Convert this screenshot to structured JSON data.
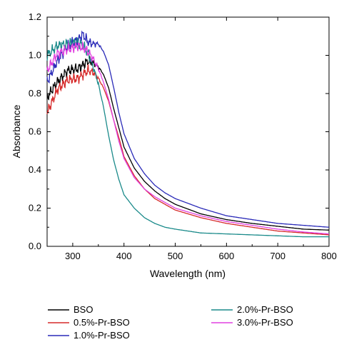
{
  "chart_data": {
    "type": "line",
    "xlabel": "Wavelength (nm)",
    "ylabel": "Absorbance",
    "xlim": [
      250,
      800
    ],
    "ylim": [
      0.0,
      1.2
    ],
    "x_ticks": [
      300,
      400,
      500,
      600,
      700,
      800
    ],
    "x_tick_labels": [
      "300",
      "400",
      "500",
      "600",
      "700",
      "800"
    ],
    "y_ticks": [
      0.0,
      0.2,
      0.4,
      0.6,
      0.8,
      1.0,
      1.2
    ],
    "y_tick_labels": [
      "0.0",
      "0.2",
      "0.4",
      "0.6",
      "0.8",
      "1.0",
      "1.2"
    ],
    "grid": false,
    "legend_position": "bottom, two columns below plot",
    "series": [
      {
        "name": "BSO",
        "color": "#000000",
        "x": [
          250,
          270,
          290,
          310,
          320,
          330,
          340,
          350,
          360,
          370,
          380,
          390,
          400,
          420,
          440,
          460,
          480,
          500,
          550,
          600,
          650,
          700,
          750,
          800
        ],
        "y": [
          0.78,
          0.86,
          0.92,
          0.93,
          0.95,
          0.97,
          0.96,
          0.94,
          0.9,
          0.83,
          0.72,
          0.62,
          0.52,
          0.41,
          0.34,
          0.29,
          0.25,
          0.22,
          0.17,
          0.14,
          0.12,
          0.105,
          0.09,
          0.085
        ]
      },
      {
        "name": "0.5%-Pr-BSO",
        "color": "#d62a2a",
        "x": [
          250,
          270,
          290,
          310,
          320,
          330,
          340,
          350,
          360,
          370,
          380,
          390,
          400,
          420,
          440,
          460,
          480,
          500,
          550,
          600,
          650,
          700,
          750,
          800
        ],
        "y": [
          0.7,
          0.82,
          0.87,
          0.88,
          0.9,
          0.92,
          0.91,
          0.88,
          0.83,
          0.76,
          0.66,
          0.57,
          0.47,
          0.37,
          0.3,
          0.25,
          0.22,
          0.19,
          0.15,
          0.12,
          0.1,
          0.08,
          0.07,
          0.06
        ]
      },
      {
        "name": "1.0%-Pr-BSO",
        "color": "#2a2ab8",
        "x": [
          250,
          270,
          290,
          310,
          320,
          330,
          340,
          350,
          360,
          370,
          380,
          390,
          400,
          420,
          440,
          460,
          480,
          500,
          550,
          600,
          650,
          700,
          750,
          800
        ],
        "y": [
          0.86,
          0.97,
          1.05,
          1.08,
          1.11,
          1.07,
          1.06,
          1.06,
          1.02,
          0.95,
          0.83,
          0.7,
          0.59,
          0.46,
          0.38,
          0.32,
          0.28,
          0.25,
          0.2,
          0.16,
          0.14,
          0.12,
          0.11,
          0.1
        ]
      },
      {
        "name": "2.0%-Pr-BSO",
        "color": "#1a8a8a",
        "x": [
          250,
          270,
          290,
          310,
          320,
          330,
          340,
          350,
          360,
          370,
          380,
          390,
          400,
          420,
          440,
          460,
          480,
          500,
          550,
          600,
          650,
          700,
          750,
          800
        ],
        "y": [
          1.0,
          1.05,
          1.06,
          1.07,
          1.05,
          1.01,
          0.94,
          0.85,
          0.73,
          0.58,
          0.45,
          0.35,
          0.27,
          0.2,
          0.15,
          0.12,
          0.1,
          0.09,
          0.07,
          0.065,
          0.06,
          0.055,
          0.05,
          0.05
        ]
      },
      {
        "name": "3.0%-Pr-BSO",
        "color": "#e040e0",
        "x": [
          250,
          270,
          290,
          310,
          320,
          330,
          340,
          350,
          360,
          370,
          380,
          390,
          400,
          420,
          440,
          460,
          480,
          500,
          550,
          600,
          650,
          700,
          750,
          800
        ],
        "y": [
          0.92,
          1.01,
          1.03,
          1.05,
          1.04,
          1.02,
          0.98,
          0.93,
          0.86,
          0.77,
          0.66,
          0.55,
          0.46,
          0.36,
          0.3,
          0.26,
          0.23,
          0.2,
          0.16,
          0.13,
          0.11,
          0.09,
          0.075,
          0.065
        ]
      }
    ]
  }
}
